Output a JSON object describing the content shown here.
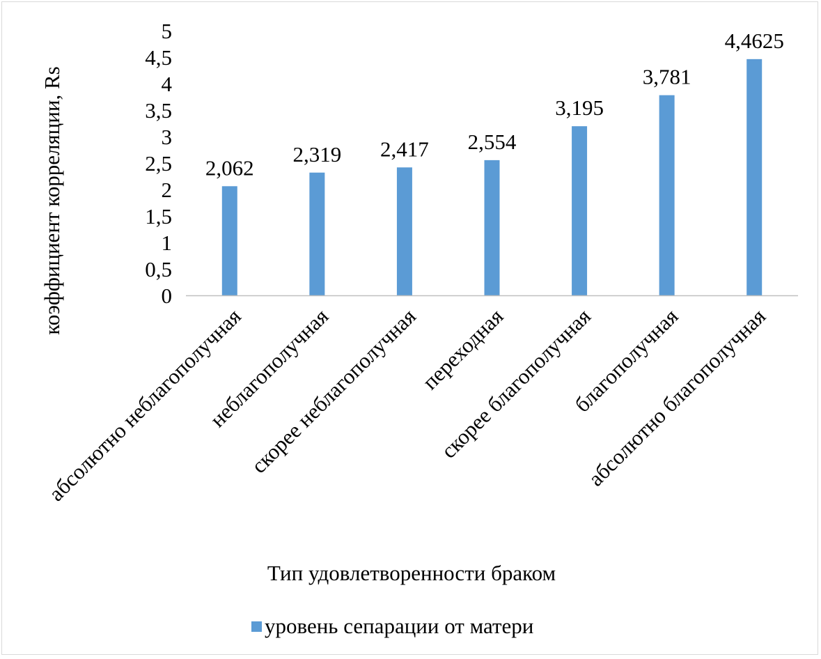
{
  "chart_data": {
    "type": "bar",
    "categories": [
      "абсолютно неблагополучная",
      "неблагополучная",
      "скорее неблагополучная",
      "переходная",
      "скорее благополучная",
      "благополучная",
      "абсолютно благополучная"
    ],
    "series": [
      {
        "name": "уровень сепарации от матери",
        "values": [
          2.062,
          2.319,
          2.417,
          2.554,
          3.195,
          3.781,
          4.4625
        ],
        "color": "#5b9bd5"
      }
    ],
    "data_labels": [
      "2,062",
      "2,319",
      "2,417",
      "2,554",
      "3,195",
      "3,781",
      "4,4625"
    ],
    "ylim": [
      0,
      5
    ],
    "yticks": [
      0,
      0.5,
      1,
      1.5,
      2,
      2.5,
      3,
      3.5,
      4,
      4.5,
      5
    ],
    "ytick_labels": [
      "0",
      "0,5",
      "1",
      "1,5",
      "2",
      "2,5",
      "3",
      "3,5",
      "4",
      "4,5",
      "5"
    ],
    "xlabel": "Тип удовлетворенности браком",
    "ylabel": "коэффициент корреляции, Rs",
    "grid": false,
    "legend_position": "bottom",
    "axis_color": "#bfbfbf"
  }
}
